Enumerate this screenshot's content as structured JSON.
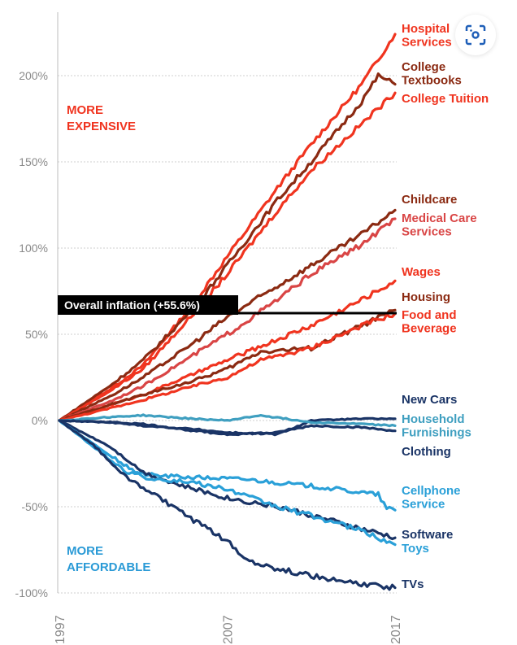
{
  "chart_data": {
    "type": "line",
    "title": "",
    "xlabel": "",
    "ylabel": "",
    "xlim": [
      1997,
      2017
    ],
    "ylim": [
      -100,
      225
    ],
    "x_ticks": [
      "1997",
      "2007",
      "2017"
    ],
    "y_ticks": [
      {
        "v": 200,
        "t": "200%"
      },
      {
        "v": 150,
        "t": "150%"
      },
      {
        "v": 100,
        "t": "100%"
      },
      {
        "v": 50,
        "t": "50%"
      },
      {
        "v": 0,
        "t": "0%"
      },
      {
        "v": -50,
        "t": "-50%"
      },
      {
        "v": -100,
        "t": "-100%"
      }
    ],
    "grid": true,
    "annotations": {
      "top": [
        "MORE",
        "EXPENSIVE"
      ],
      "bottom": [
        "MORE",
        "AFFORDABLE"
      ],
      "top_color": "#f0341f",
      "bottom_color": "#2a9ad6"
    },
    "reference": {
      "label": "Overall inflation (+55.6%)",
      "value": 55.6
    },
    "series": [
      {
        "name": "Hospital Services",
        "label": [
          "Hospital",
          "Services"
        ],
        "color": "#f0341f",
        "points": [
          [
            1997,
            0
          ],
          [
            2000,
            18
          ],
          [
            2002,
            32
          ],
          [
            2005,
            68
          ],
          [
            2007,
            95
          ],
          [
            2010,
            135
          ],
          [
            2012,
            160
          ],
          [
            2015,
            195
          ],
          [
            2017,
            224
          ]
        ]
      },
      {
        "name": "College Textbooks",
        "label": [
          "College",
          "Textbooks"
        ],
        "color": "#8b2a12",
        "points": [
          [
            1997,
            0
          ],
          [
            2000,
            20
          ],
          [
            2002,
            35
          ],
          [
            2005,
            65
          ],
          [
            2007,
            90
          ],
          [
            2010,
            128
          ],
          [
            2012,
            150
          ],
          [
            2015,
            185
          ],
          [
            2016,
            200
          ],
          [
            2017,
            195
          ]
        ]
      },
      {
        "name": "College Tuition",
        "label": [
          "College Tuition"
        ],
        "color": "#f0341f",
        "points": [
          [
            1997,
            0
          ],
          [
            2000,
            17
          ],
          [
            2002,
            30
          ],
          [
            2005,
            62
          ],
          [
            2007,
            85
          ],
          [
            2010,
            122
          ],
          [
            2012,
            145
          ],
          [
            2015,
            172
          ],
          [
            2017,
            190
          ]
        ]
      },
      {
        "name": "Childcare",
        "label": [
          "Childcare"
        ],
        "color": "#8b2a12",
        "points": [
          [
            1997,
            0
          ],
          [
            2000,
            14
          ],
          [
            2002,
            25
          ],
          [
            2005,
            45
          ],
          [
            2007,
            60
          ],
          [
            2010,
            78
          ],
          [
            2012,
            90
          ],
          [
            2015,
            108
          ],
          [
            2017,
            122
          ]
        ]
      },
      {
        "name": "Medical Care Services",
        "label": [
          "Medical Care",
          "Services"
        ],
        "color": "#d94545",
        "points": [
          [
            1997,
            0
          ],
          [
            2000,
            11
          ],
          [
            2002,
            20
          ],
          [
            2005,
            38
          ],
          [
            2007,
            50
          ],
          [
            2010,
            70
          ],
          [
            2012,
            85
          ],
          [
            2015,
            102
          ],
          [
            2017,
            117
          ]
        ]
      },
      {
        "name": "Wages",
        "label": [
          "Wages"
        ],
        "color": "#f0341f",
        "points": [
          [
            1997,
            0
          ],
          [
            2000,
            9
          ],
          [
            2002,
            15
          ],
          [
            2005,
            27
          ],
          [
            2007,
            35
          ],
          [
            2010,
            47
          ],
          [
            2012,
            55
          ],
          [
            2015,
            70
          ],
          [
            2017,
            81
          ]
        ]
      },
      {
        "name": "Housing",
        "label": [
          "Housing"
        ],
        "color": "#8b2a12",
        "points": [
          [
            1997,
            0
          ],
          [
            2000,
            9
          ],
          [
            2002,
            15
          ],
          [
            2005,
            23
          ],
          [
            2007,
            30
          ],
          [
            2009,
            40
          ],
          [
            2012,
            42
          ],
          [
            2015,
            55
          ],
          [
            2017,
            64
          ]
        ]
      },
      {
        "name": "Food and Beverage",
        "label": [
          "Food and",
          "Beverage"
        ],
        "color": "#f0341f",
        "points": [
          [
            1997,
            0
          ],
          [
            2000,
            7
          ],
          [
            2002,
            12
          ],
          [
            2005,
            20
          ],
          [
            2007,
            25
          ],
          [
            2009,
            35
          ],
          [
            2012,
            42
          ],
          [
            2015,
            55
          ],
          [
            2017,
            62
          ]
        ]
      },
      {
        "name": "New Cars",
        "label": [
          "New Cars"
        ],
        "color": "#1a3466",
        "points": [
          [
            1997,
            0
          ],
          [
            2000,
            -1
          ],
          [
            2002,
            -3
          ],
          [
            2005,
            -5
          ],
          [
            2007,
            -7
          ],
          [
            2010,
            -8
          ],
          [
            2012,
            0
          ],
          [
            2015,
            1
          ],
          [
            2017,
            1
          ]
        ]
      },
      {
        "name": "Household Furnishings",
        "label": [
          "Household",
          "Furnishings"
        ],
        "color": "#3f9fc0",
        "points": [
          [
            1997,
            0
          ],
          [
            2000,
            2
          ],
          [
            2002,
            3
          ],
          [
            2005,
            1
          ],
          [
            2007,
            0
          ],
          [
            2009,
            3
          ],
          [
            2012,
            -1
          ],
          [
            2015,
            -2
          ],
          [
            2017,
            -3
          ]
        ]
      },
      {
        "name": "Clothing",
        "label": [
          "Clothing"
        ],
        "color": "#1a3466",
        "points": [
          [
            1997,
            0
          ],
          [
            2000,
            -1
          ],
          [
            2002,
            -2
          ],
          [
            2005,
            -6
          ],
          [
            2007,
            -8
          ],
          [
            2010,
            -7
          ],
          [
            2012,
            -3
          ],
          [
            2015,
            -4
          ],
          [
            2017,
            -6
          ]
        ]
      },
      {
        "name": "Cellphone Service",
        "label": [
          "Cellphone",
          "Service"
        ],
        "color": "#2aa0d8",
        "points": [
          [
            1997,
            0
          ],
          [
            1999,
            -15
          ],
          [
            2001,
            -30
          ],
          [
            2003,
            -32
          ],
          [
            2005,
            -33
          ],
          [
            2008,
            -34
          ],
          [
            2012,
            -38
          ],
          [
            2016,
            -43
          ],
          [
            2016.5,
            -51
          ],
          [
            2017,
            -52
          ]
        ]
      },
      {
        "name": "Software",
        "label": [
          "Software"
        ],
        "color": "#1a3466",
        "points": [
          [
            1997,
            0
          ],
          [
            2000,
            -15
          ],
          [
            2002,
            -30
          ],
          [
            2004,
            -37
          ],
          [
            2007,
            -45
          ],
          [
            2010,
            -50
          ],
          [
            2012,
            -55
          ],
          [
            2015,
            -63
          ],
          [
            2017,
            -68
          ]
        ]
      },
      {
        "name": "Toys",
        "label": [
          "Toys"
        ],
        "color": "#2aa0d8",
        "points": [
          [
            1997,
            0
          ],
          [
            2000,
            -20
          ],
          [
            2002,
            -33
          ],
          [
            2005,
            -36
          ],
          [
            2007,
            -40
          ],
          [
            2010,
            -50
          ],
          [
            2012,
            -55
          ],
          [
            2015,
            -64
          ],
          [
            2017,
            -72
          ]
        ]
      },
      {
        "name": "TVs",
        "label": [
          "TVs"
        ],
        "color": "#1a3466",
        "points": [
          [
            1997,
            0
          ],
          [
            1999,
            -14
          ],
          [
            2001,
            -33
          ],
          [
            2003,
            -45
          ],
          [
            2005,
            -58
          ],
          [
            2007,
            -70
          ],
          [
            2008,
            -80
          ],
          [
            2010,
            -86
          ],
          [
            2013,
            -92
          ],
          [
            2015,
            -95
          ],
          [
            2017,
            -97
          ]
        ]
      }
    ]
  },
  "lens_icon": "visual-search-icon"
}
